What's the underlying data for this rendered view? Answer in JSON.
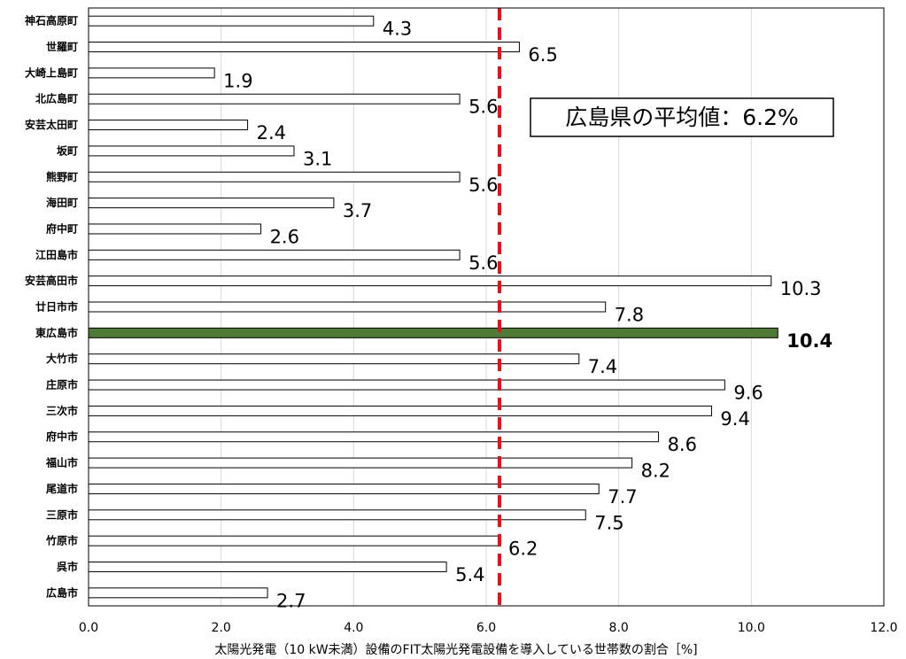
{
  "chart_data": {
    "type": "bar",
    "orientation": "horizontal",
    "categories": [
      "神石高原町",
      "世羅町",
      "大崎上島町",
      "北広島町",
      "安芸太田町",
      "坂町",
      "熊野町",
      "海田町",
      "府中町",
      "江田島市",
      "安芸高田市",
      "廿日市市",
      "東広島市",
      "大竹市",
      "庄原市",
      "三次市",
      "府中市",
      "福山市",
      "尾道市",
      "三原市",
      "竹原市",
      "呉市",
      "広島市"
    ],
    "values": [
      4.3,
      6.5,
      1.9,
      5.6,
      2.4,
      3.1,
      5.6,
      3.7,
      2.6,
      5.6,
      10.3,
      7.8,
      10.4,
      7.4,
      9.6,
      9.4,
      8.6,
      8.2,
      7.7,
      7.5,
      6.2,
      5.4,
      2.7
    ],
    "value_labels": [
      "4.3",
      "6.5",
      "1.9",
      "5.6",
      "2.4",
      "3.1",
      "5.6",
      "3.7",
      "2.6",
      "5.6",
      "10.3",
      "7.8",
      "10.4",
      "7.4",
      "9.6",
      "9.4",
      "8.6",
      "8.2",
      "7.7",
      "7.5",
      "6.2",
      "5.4",
      "2.7"
    ],
    "highlight_index": 12,
    "xlabel": "太陽光発電（10 kW未満）設備のFIT太陽光発電設備を導入している世帯数の割合［%]",
    "xlim": [
      0,
      12
    ],
    "x_ticks": [
      0,
      2,
      4,
      6,
      8,
      10,
      12
    ],
    "x_tick_labels": [
      "0.0",
      "2.0",
      "4.0",
      "6.0",
      "8.0",
      "10.0",
      "12.0"
    ],
    "grid": true,
    "reference_line": {
      "value": 6.2,
      "label": "広島県の平均値：6.2%"
    },
    "colors": {
      "bar_fill": "#ffffff",
      "bar_stroke": "#000000",
      "highlight_fill": "#4f7a35",
      "reference_line": "#e8101a",
      "grid": "#d9d9d9"
    }
  }
}
